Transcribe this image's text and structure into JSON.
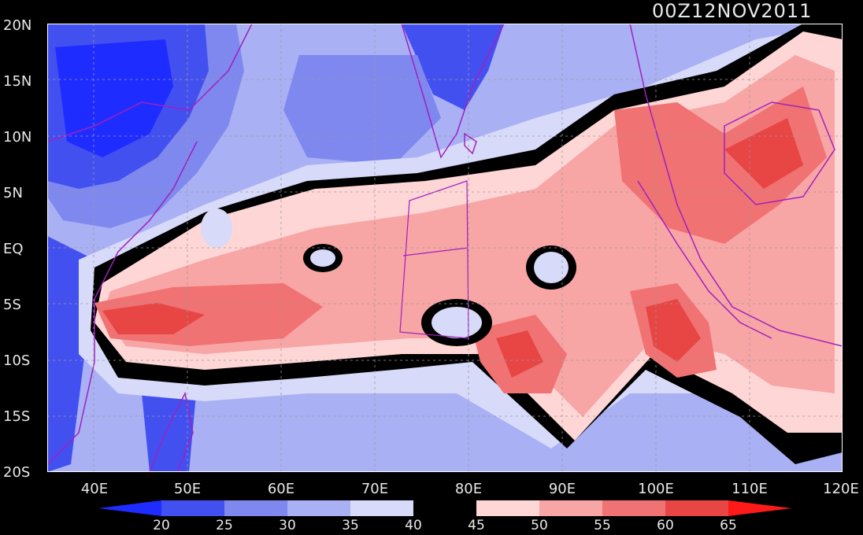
{
  "timestamp": "00Z12NOV2011",
  "lat_labels": [
    "20N",
    "15N",
    "10N",
    "5N",
    "EQ",
    "5S",
    "10S",
    "15S",
    "20S"
  ],
  "lon_labels": [
    "40E",
    "50E",
    "60E",
    "70E",
    "80E",
    "90E",
    "100E",
    "110E",
    "120E"
  ],
  "colorbar": {
    "labels": [
      "20",
      "25",
      "30",
      "35",
      "40",
      "45",
      "50",
      "55",
      "60",
      "65"
    ],
    "colors": [
      "#1f2cff",
      "#4350f0",
      "#7f88ee",
      "#a9b0f4",
      "#d8dafa",
      "#000000",
      "#ffd6d6",
      "#f8a5a5",
      "#f07272",
      "#e84545",
      "#ff1a1a"
    ]
  },
  "field_colors": {
    "lt20": "#1f2cff",
    "c20_25": "#4350f0",
    "c25_30": "#7f88ee",
    "c30_35": "#a9b0f4",
    "c35_40": "#d8dafa",
    "c40_45": "#000000",
    "c45_50": "#ffd6d6",
    "c50_55": "#f8a5a5",
    "c55_60": "#f07272",
    "c60_65": "#e84545",
    "gt65": "#ff1a1a",
    "coast": "#a020c0"
  }
}
